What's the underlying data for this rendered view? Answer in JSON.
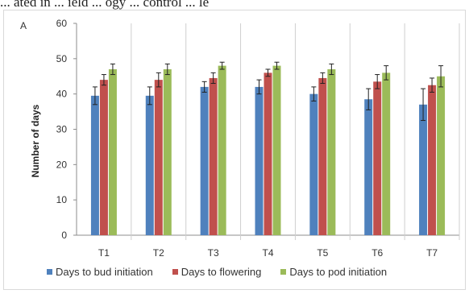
{
  "caption_fragment": "... ated in ... ield ... ogy ... control ... le",
  "chart_data": {
    "type": "bar",
    "panel_label": "A",
    "title": "",
    "xlabel": "",
    "ylabel": "Number of days",
    "ylim": [
      0,
      60
    ],
    "yticks": [
      0,
      10,
      20,
      30,
      40,
      50,
      60
    ],
    "categories": [
      "T1",
      "T2",
      "T3",
      "T4",
      "T5",
      "T6",
      "T7"
    ],
    "grid": "vertical separators between categories",
    "legend_position": "bottom",
    "series": [
      {
        "name": "Days to bud initiation",
        "color": "#4f81bd",
        "values": [
          39.5,
          39.5,
          42,
          42,
          40,
          38.5,
          37
        ],
        "errors": [
          2.5,
          2.5,
          1.5,
          2,
          2,
          3,
          4.5
        ]
      },
      {
        "name": "Days to flowering",
        "color": "#c0504d",
        "values": [
          44,
          44,
          44.5,
          46,
          44.5,
          43.5,
          42.5
        ],
        "errors": [
          1.5,
          2,
          1.5,
          1,
          1.5,
          2,
          2
        ]
      },
      {
        "name": "Days to pod initiation",
        "color": "#9bbb59",
        "values": [
          47,
          47,
          48,
          48,
          47,
          46,
          45
        ],
        "errors": [
          1.5,
          1.5,
          1,
          1,
          1.5,
          2,
          3
        ]
      }
    ]
  }
}
